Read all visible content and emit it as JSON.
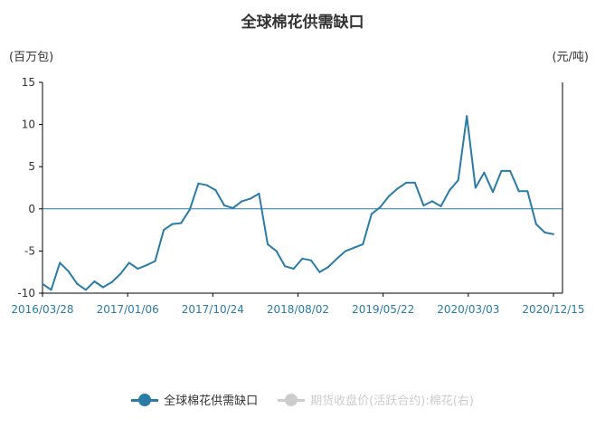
{
  "chart_data": {
    "type": "line",
    "title": "全球棉花供需缺口",
    "ylabel_left": "(百万包)",
    "ylabel_right": "(元/吨)",
    "ylim": [
      -10,
      15
    ],
    "yticks": [
      -10,
      -5,
      0,
      5,
      10,
      15
    ],
    "x_tick_labels": [
      "2016/03/28",
      "2017/01/06",
      "2017/10/24",
      "2018/08/02",
      "2019/05/22",
      "2020/03/03",
      "2020/12/15"
    ],
    "colors": {
      "series1": "#2a7ba6",
      "series2": "#cccccc",
      "axis": "#000000",
      "zero_line": "#2a7ba6",
      "tick_text": "#2a7ba6"
    },
    "series": [
      {
        "name": "全球棉花供需缺口",
        "values": [
          -8.9,
          -9.6,
          -6.4,
          -7.4,
          -8.9,
          -9.6,
          -8.6,
          -9.3,
          -8.7,
          -7.7,
          -6.4,
          -7.1,
          -6.7,
          -6.2,
          -2.5,
          -1.8,
          -1.7,
          -0.1,
          3.0,
          2.8,
          2.2,
          0.4,
          0.1,
          0.9,
          1.2,
          1.8,
          -4.2,
          -5.0,
          -6.8,
          -7.1,
          -5.9,
          -6.1,
          -7.5,
          -6.9,
          -5.9,
          -5.0,
          -4.6,
          -4.2,
          -0.6,
          0.2,
          1.5,
          2.4,
          3.1,
          3.1,
          0.4,
          0.9,
          0.3,
          2.2,
          3.4,
          11.0,
          2.5,
          4.3,
          2.0,
          4.5,
          4.5,
          2.1,
          2.1,
          -1.8,
          -2.8,
          -3.0
        ]
      },
      {
        "name": "期货收盘价(活跃合约):棉花(右)",
        "values": []
      }
    ],
    "legend_position": "bottom",
    "grid": false
  }
}
